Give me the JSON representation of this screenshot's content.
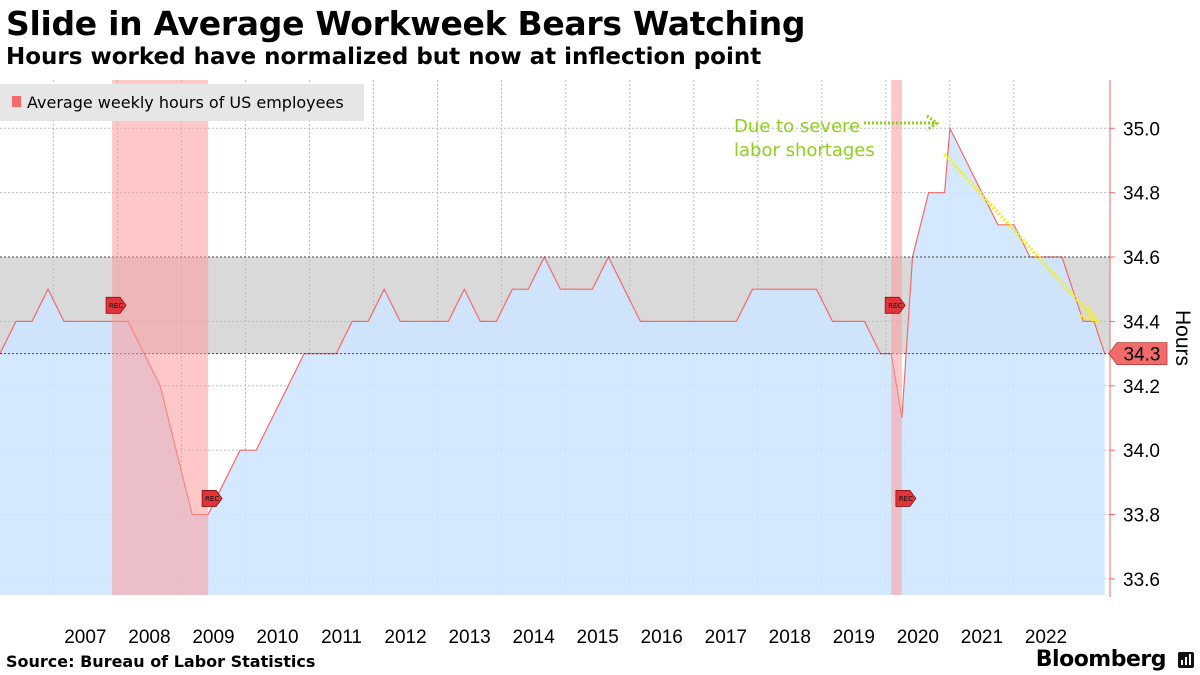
{
  "header": {
    "title": "Slide in Average Workweek Bears Watching",
    "subtitle": "Hours worked have normalized but now at inflection point"
  },
  "footer": {
    "source": "Source: Bureau of Labor Statistics",
    "brand": "Bloomberg"
  },
  "colors": {
    "line": "#f26b6b",
    "area": "#cce4ff",
    "band": "#d9d9d9",
    "recession": "#ff9a9a",
    "annotation": "#8fd11a",
    "last_value_bg": "#f26b6b"
  },
  "chart_data": {
    "type": "area",
    "title": "Slide in Average Workweek Bears Watching",
    "subtitle": "Hours worked have normalized but now at inflection point",
    "ylabel": "Hours",
    "ylim": [
      33.55,
      35.15
    ],
    "yticks": [
      33.6,
      33.8,
      34.0,
      34.2,
      34.4,
      34.6,
      34.8,
      35.0
    ],
    "ytick_labels": [
      "33.6",
      "33.8",
      "34.0",
      "34.2",
      "34.4",
      "34.6",
      "34.8",
      "35.0"
    ],
    "xlim": [
      "2006-03",
      "2023-07"
    ],
    "xtick_labels": [
      "2007",
      "2008",
      "2009",
      "2010",
      "2011",
      "2012",
      "2013",
      "2014",
      "2015",
      "2016",
      "2017",
      "2018",
      "2019",
      "2020",
      "2021",
      "2022"
    ],
    "grid": true,
    "legend_position": "top-left",
    "series": [
      {
        "name": "Average weekly hours of US employees",
        "x": [
          "2006-03",
          "2006-06",
          "2006-09",
          "2006-12",
          "2007-03",
          "2007-06",
          "2007-09",
          "2007-12",
          "2008-03",
          "2008-06",
          "2008-09",
          "2008-12",
          "2009-03",
          "2009-06",
          "2009-09",
          "2009-12",
          "2010-03",
          "2010-06",
          "2010-09",
          "2010-12",
          "2011-03",
          "2011-06",
          "2011-09",
          "2011-12",
          "2012-03",
          "2012-06",
          "2012-09",
          "2012-12",
          "2013-03",
          "2013-06",
          "2013-09",
          "2013-12",
          "2014-03",
          "2014-06",
          "2014-09",
          "2014-12",
          "2015-03",
          "2015-06",
          "2015-09",
          "2015-12",
          "2016-03",
          "2016-06",
          "2016-09",
          "2016-12",
          "2017-03",
          "2017-06",
          "2017-09",
          "2017-12",
          "2018-03",
          "2018-06",
          "2018-09",
          "2018-12",
          "2019-03",
          "2019-06",
          "2019-09",
          "2019-12",
          "2020-02",
          "2020-04",
          "2020-06",
          "2020-09",
          "2020-12",
          "2021-01",
          "2021-04",
          "2021-07",
          "2021-10",
          "2022-01",
          "2022-04",
          "2022-07",
          "2022-10",
          "2022-12",
          "2023-02",
          "2023-04",
          "2023-06"
        ],
        "values": [
          34.3,
          34.4,
          34.4,
          34.5,
          34.4,
          34.4,
          34.4,
          34.4,
          34.4,
          34.3,
          34.2,
          34.0,
          33.8,
          33.8,
          33.9,
          34.0,
          34.0,
          34.1,
          34.2,
          34.3,
          34.3,
          34.3,
          34.4,
          34.4,
          34.5,
          34.4,
          34.4,
          34.4,
          34.4,
          34.5,
          34.4,
          34.4,
          34.5,
          34.5,
          34.6,
          34.5,
          34.5,
          34.5,
          34.6,
          34.5,
          34.4,
          34.4,
          34.4,
          34.4,
          34.4,
          34.4,
          34.4,
          34.5,
          34.5,
          34.5,
          34.5,
          34.5,
          34.4,
          34.4,
          34.4,
          34.3,
          34.3,
          34.1,
          34.6,
          34.8,
          34.8,
          35.0,
          34.9,
          34.8,
          34.7,
          34.7,
          34.6,
          34.6,
          34.6,
          34.5,
          34.4,
          34.4,
          34.3
        ]
      }
    ],
    "reference_band": {
      "from": 34.3,
      "to": 34.6
    },
    "recessions": [
      {
        "start": "2007-12",
        "end": "2009-06",
        "label": "REC"
      },
      {
        "start": "2020-02",
        "end": "2020-04",
        "label": "REC"
      }
    ],
    "annotations": [
      {
        "text": "Due to severe labor shortages",
        "lines": [
          "Due to severe",
          "labor shortages"
        ],
        "points_to": "2021-01"
      }
    ],
    "last_value_label": "34.3"
  }
}
